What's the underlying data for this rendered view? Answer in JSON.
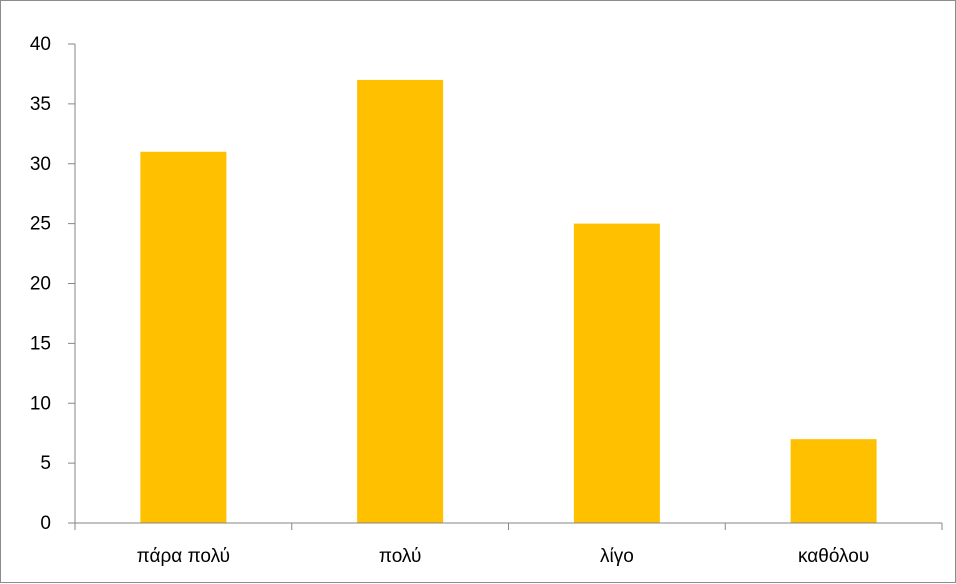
{
  "chart_data": {
    "type": "bar",
    "categories": [
      "πάρα πολύ",
      "πολύ",
      "λίγο",
      "καθόλου"
    ],
    "values": [
      31,
      37,
      25,
      7
    ],
    "title": "",
    "xlabel": "",
    "ylabel": "",
    "ylim": [
      0,
      40
    ],
    "yticks": [
      "0",
      "5",
      "10",
      "15",
      "20",
      "25",
      "30",
      "35",
      "40"
    ],
    "grid": false,
    "legend": "none",
    "bar_color": "#FFC000",
    "axis_color": "#868686"
  }
}
